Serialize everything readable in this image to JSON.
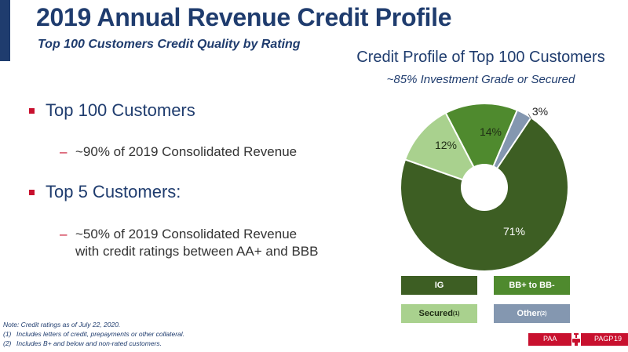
{
  "header": {
    "title": "2019 Annual Revenue Credit Profile",
    "subtitle": "Top 100 Customers Credit Quality by Rating"
  },
  "bullets": [
    {
      "text": "Top 100 Customers",
      "sub": "~90% of 2019 Consolidated Revenue"
    },
    {
      "text": "Top 5 Customers:",
      "sub_lines": [
        "~50% of 2019 Consolidated Revenue",
        "with credit ratings between AA+ and BBB"
      ]
    }
  ],
  "chart_data": {
    "type": "pie",
    "title": "Credit Profile of Top 100 Customers",
    "subtitle": "~85% Investment Grade or Secured",
    "categories": [
      "IG",
      "BB+ to BB-",
      "Secured",
      "Other"
    ],
    "values": [
      71,
      14,
      12,
      3
    ],
    "data_labels": [
      "71%",
      "14%",
      "12%",
      "3%"
    ],
    "colors": [
      "#3d5e23",
      "#4f8a2e",
      "#a9d18e",
      "#8497b0"
    ],
    "legend": [
      {
        "label": "IG",
        "sup": ""
      },
      {
        "label": "BB+ to BB-",
        "sup": ""
      },
      {
        "label": "Secured",
        "sup": "(1)"
      },
      {
        "label": "Other",
        "sup": "(2)"
      }
    ],
    "legend_position": "bottom"
  },
  "notes": {
    "header": "Note: Credit ratings as of July 22, 2020.",
    "items": [
      {
        "num": "(1)",
        "text": "Includes letters of credit, prepayments or other collateral."
      },
      {
        "num": "(2)",
        "text": "Includes B+ and below and non-rated customers."
      }
    ]
  },
  "footer": {
    "left": "PAA",
    "right": "PAGP",
    "page": "19"
  }
}
